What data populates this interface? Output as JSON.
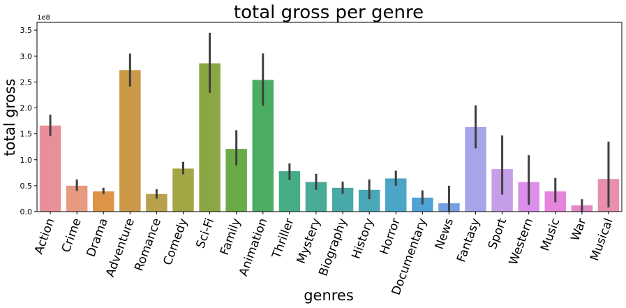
{
  "chart_data": {
    "type": "bar",
    "title": "total gross per genre",
    "xlabel": "genres",
    "ylabel": "total gross",
    "y_offset_label": "1e8",
    "ylim": [
      0,
      3.65
    ],
    "yticks": [
      "0.0",
      "0.5",
      "1.0",
      "1.5",
      "2.0",
      "2.5",
      "3.0",
      "3.5"
    ],
    "categories": [
      "Action",
      "Crime",
      "Drama",
      "Adventure",
      "Romance",
      "Comedy",
      "Sci-Fi",
      "Family",
      "Animation",
      "Thriller",
      "Mystery",
      "Biography",
      "History",
      "Horror",
      "Documentary",
      "News",
      "Fantasy",
      "Sport",
      "Western",
      "Music",
      "War",
      "Musical"
    ],
    "values": [
      1.66,
      0.5,
      0.39,
      2.73,
      0.34,
      0.83,
      2.86,
      1.21,
      2.54,
      0.78,
      0.57,
      0.46,
      0.42,
      0.64,
      0.27,
      0.16,
      1.63,
      0.82,
      0.57,
      0.39,
      0.12,
      0.63
    ],
    "err_low": [
      1.46,
      0.4,
      0.34,
      2.41,
      0.25,
      0.72,
      2.29,
      0.89,
      2.04,
      0.61,
      0.42,
      0.34,
      0.24,
      0.5,
      0.14,
      0.0,
      1.22,
      0.33,
      0.13,
      0.18,
      0.0,
      0.08
    ],
    "err_high": [
      1.87,
      0.62,
      0.46,
      3.05,
      0.43,
      0.96,
      3.45,
      1.57,
      3.05,
      0.93,
      0.73,
      0.58,
      0.62,
      0.79,
      0.41,
      0.5,
      2.05,
      1.47,
      1.09,
      0.65,
      0.24,
      1.35
    ],
    "colors": [
      "#e8909a",
      "#e79a80",
      "#dd9448",
      "#c99948",
      "#b8a04c",
      "#a4a544",
      "#8aa744",
      "#6aab48",
      "#4bad62",
      "#46ad86",
      "#47ab98",
      "#48a9a8",
      "#4aa7b8",
      "#4ba5c6",
      "#50a2d6",
      "#749fe2",
      "#a6a5ea",
      "#c59ee8",
      "#db8eea",
      "#e785dc",
      "#e788c6",
      "#e88eae"
    ],
    "grid": false,
    "legend": "none"
  }
}
